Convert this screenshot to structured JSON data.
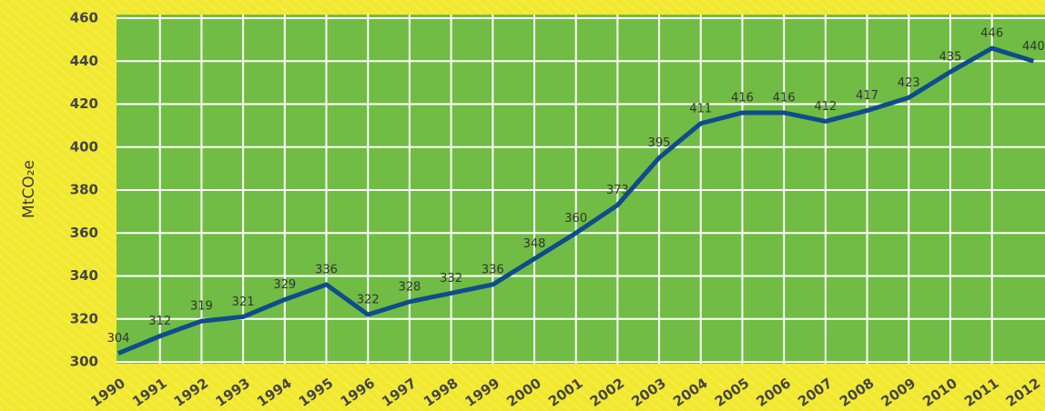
{
  "chart_data": {
    "type": "line",
    "y_label": "MtCO₂e",
    "categories": [
      "1990",
      "1991",
      "1992",
      "1993",
      "1994",
      "1995",
      "1996",
      "1997",
      "1998",
      "1999",
      "2000",
      "2001",
      "2002",
      "2003",
      "2004",
      "2005",
      "2006",
      "2007",
      "2008",
      "2009",
      "2010",
      "2011",
      "2012"
    ],
    "series": [
      {
        "name": null,
        "color": "#0f4c8c",
        "values": [
          304,
          312,
          319,
          321,
          329,
          336,
          322,
          328,
          332,
          336,
          348,
          360,
          373,
          395,
          411,
          416,
          416,
          412,
          417,
          423,
          435,
          446,
          440
        ]
      }
    ],
    "ylim": [
      300,
      460
    ],
    "yticks": [
      300,
      320,
      340,
      360,
      380,
      400,
      420,
      440,
      460
    ],
    "grid": true,
    "plot_color": "#70bc44",
    "background_color": "#f2e92e"
  }
}
